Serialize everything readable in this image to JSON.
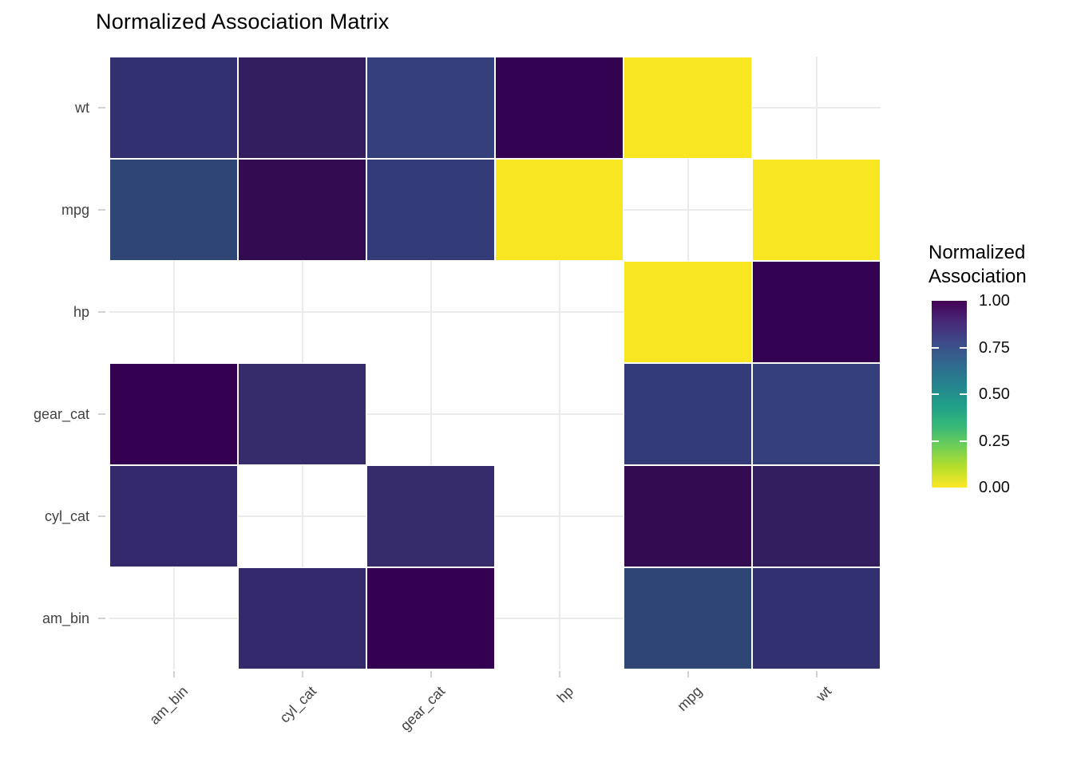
{
  "title": "Normalized Association Matrix",
  "legend": {
    "title_line1": "Normalized",
    "title_line2": "Association",
    "tick_labels": [
      "1.00",
      "0.75",
      "0.50",
      "0.25",
      "0.00"
    ],
    "gradient_stops_top_to_bottom": [
      "#440154",
      "#482878",
      "#3e4a89",
      "#31688e",
      "#26828e",
      "#1f9e89",
      "#35b779",
      "#6ece58",
      "#b5de2b",
      "#fde725"
    ]
  },
  "chart_data": {
    "type": "heatmap",
    "title": "Normalized Association Matrix",
    "legend_title": "Normalized Association",
    "palette": "viridis reversed (1.00 = dark purple, 0.00 = yellow)",
    "colorbar_range": [
      0.0,
      1.0
    ],
    "colorbar_tick_labels": [
      "1.00",
      "0.75",
      "0.50",
      "0.25",
      "0.00"
    ],
    "grid": true,
    "na_cells_blank": true,
    "x_categories": [
      "am_bin",
      "cyl_cat",
      "gear_cat",
      "hp",
      "mpg",
      "wt"
    ],
    "y_categories_top_to_bottom": [
      "wt",
      "mpg",
      "hp",
      "gear_cat",
      "cyl_cat",
      "am_bin"
    ],
    "rows": [
      {
        "y": "wt",
        "cells": [
          {
            "x": "am_bin",
            "value": 0.87,
            "color": "#33306F"
          },
          {
            "x": "cyl_cat",
            "value": 0.93,
            "color": "#331E60"
          },
          {
            "x": "gear_cat",
            "value": 0.84,
            "color": "#353F7C"
          },
          {
            "x": "hp",
            "value": 1.0,
            "color": "#330250"
          },
          {
            "x": "mpg",
            "value": 0.0,
            "color": "#F8E622"
          },
          null
        ]
      },
      {
        "y": "mpg",
        "cells": [
          {
            "x": "am_bin",
            "value": 0.8,
            "color": "#2F4573"
          },
          {
            "x": "cyl_cat",
            "value": 0.97,
            "color": "#330B50"
          },
          {
            "x": "gear_cat",
            "value": 0.84,
            "color": "#333C78"
          },
          {
            "x": "hp",
            "value": 0.0,
            "color": "#F8E622"
          },
          null,
          {
            "x": "wt",
            "value": 0.0,
            "color": "#F8E622"
          }
        ]
      },
      {
        "y": "hp",
        "cells": [
          null,
          null,
          null,
          null,
          {
            "x": "mpg",
            "value": 0.0,
            "color": "#F8E622"
          },
          {
            "x": "wt",
            "value": 1.0,
            "color": "#330250"
          }
        ]
      },
      {
        "y": "gear_cat",
        "cells": [
          {
            "x": "am_bin",
            "value": 1.0,
            "color": "#330150"
          },
          {
            "x": "cyl_cat",
            "value": 0.89,
            "color": "#362C6C"
          },
          null,
          null,
          {
            "x": "mpg",
            "value": 0.84,
            "color": "#333C78"
          },
          {
            "x": "wt",
            "value": 0.84,
            "color": "#353F7C"
          }
        ]
      },
      {
        "y": "cyl_cat",
        "cells": [
          {
            "x": "am_bin",
            "value": 0.89,
            "color": "#34296A"
          },
          null,
          {
            "x": "gear_cat",
            "value": 0.89,
            "color": "#362C6C"
          },
          null,
          {
            "x": "mpg",
            "value": 0.97,
            "color": "#330B50"
          },
          {
            "x": "wt",
            "value": 0.93,
            "color": "#331E60"
          }
        ]
      },
      {
        "y": "am_bin",
        "cells": [
          null,
          {
            "x": "cyl_cat",
            "value": 0.89,
            "color": "#34296A"
          },
          {
            "x": "gear_cat",
            "value": 1.0,
            "color": "#330150"
          },
          null,
          {
            "x": "mpg",
            "value": 0.8,
            "color": "#2F4573"
          },
          {
            "x": "wt",
            "value": 0.87,
            "color": "#33306F"
          }
        ]
      }
    ]
  }
}
